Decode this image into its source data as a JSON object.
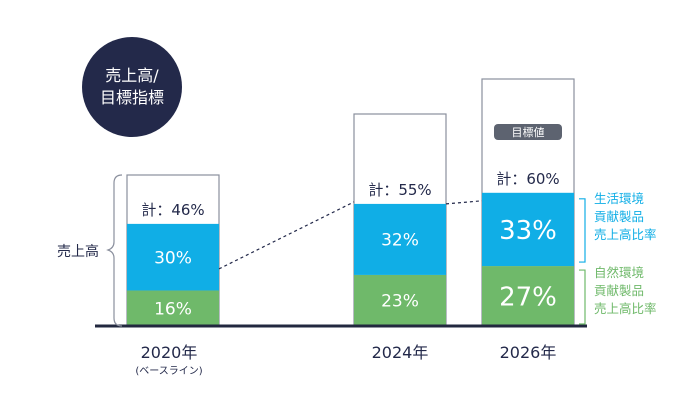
{
  "indicator": {
    "line1": "売上高/",
    "line2": "目標指標"
  },
  "colors": {
    "blue": "#10aee6",
    "green": "#6fb96a",
    "outline": "#8a8f9d",
    "badge": "#23294a",
    "target_tag": "#5d6370",
    "axis": "#22283f",
    "dotted": "#23294a"
  },
  "chart_data": {
    "type": "bar",
    "stacked": true,
    "categories": [
      "2020年",
      "2024年",
      "2026年"
    ],
    "category_sublabels": [
      "(ベースライン)",
      "",
      ""
    ],
    "series": [
      {
        "name": "自然環境\n貢献製品\n売上高比率",
        "values": [
          16,
          23,
          27
        ],
        "labels": [
          "16%",
          "23%",
          "27%"
        ]
      },
      {
        "name": "生活環境\n貢献製品\n売上高比率",
        "values": [
          30,
          32,
          33
        ],
        "labels": [
          "30%",
          "32%",
          "33%"
        ]
      }
    ],
    "totals": [
      46,
      55,
      60
    ],
    "total_labels": [
      "計：46%",
      "計：55%",
      "計：60%"
    ],
    "target_label": "目標値",
    "ylabel": "売上高",
    "ylim": [
      0,
      100
    ]
  }
}
